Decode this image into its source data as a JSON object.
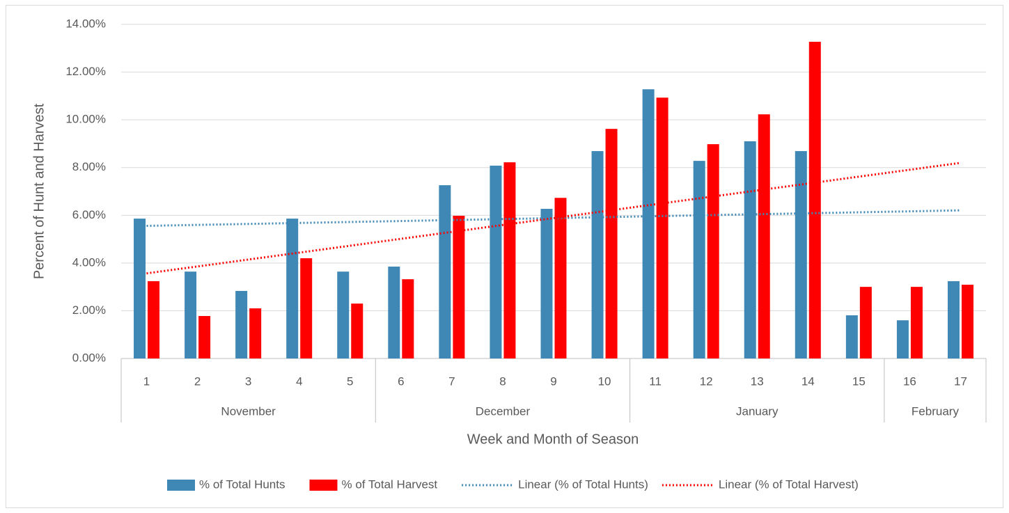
{
  "chart_data": {
    "type": "bar",
    "x_label": "Week and Month of Season",
    "y_label": "Percent of Hunt and Harvest",
    "categories": [
      "1",
      "2",
      "3",
      "4",
      "5",
      "6",
      "7",
      "8",
      "9",
      "10",
      "11",
      "12",
      "13",
      "14",
      "15",
      "16",
      "17"
    ],
    "groups": [
      {
        "label": "November",
        "count": 5
      },
      {
        "label": "December",
        "count": 5
      },
      {
        "label": "January",
        "count": 5
      },
      {
        "label": "February",
        "count": 2
      }
    ],
    "series": [
      {
        "name": "% of Total Hunts",
        "color": "#3f88b5",
        "values": [
          5.86,
          3.64,
          2.83,
          5.86,
          3.64,
          3.85,
          7.26,
          8.08,
          6.27,
          8.69,
          11.28,
          8.28,
          9.1,
          8.69,
          1.81,
          1.6,
          3.24
        ],
        "trendline": {
          "type": "linear",
          "name": "Linear (% of Total Hunts)",
          "style": "dotted"
        }
      },
      {
        "name": "% of Total Harvest",
        "color": "#ff0000",
        "values": [
          3.24,
          1.78,
          2.1,
          4.2,
          2.3,
          3.32,
          5.98,
          8.22,
          6.73,
          9.62,
          10.93,
          8.98,
          10.23,
          13.27,
          3.0,
          3.0,
          3.09
        ],
        "trendline": {
          "type": "linear",
          "name": "Linear (% of Total Harvest)",
          "style": "dotted"
        }
      }
    ],
    "ylim": [
      0,
      14
    ],
    "yticks": [
      {
        "value": 0,
        "label": "0.00%"
      },
      {
        "value": 2,
        "label": "2.00%"
      },
      {
        "value": 4,
        "label": "4.00%"
      },
      {
        "value": 6,
        "label": "6.00%"
      },
      {
        "value": 8,
        "label": "8.00%"
      },
      {
        "value": 10,
        "label": "10.00%"
      },
      {
        "value": 12,
        "label": "12.00%"
      },
      {
        "value": 14,
        "label": "14.00%"
      }
    ],
    "grid": true,
    "legend": "bottom"
  }
}
